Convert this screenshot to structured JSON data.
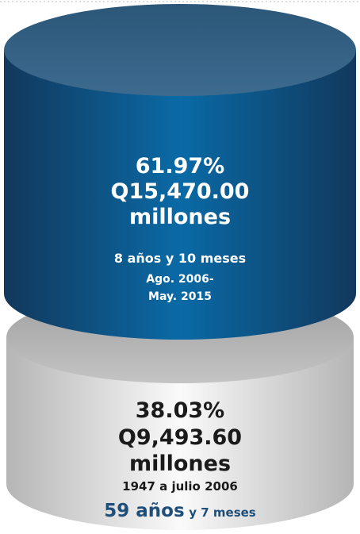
{
  "segments": [
    {
      "percent": "61.97%",
      "amount": "Q15,470.00",
      "unit": "millones",
      "duration": "8 años y 10 meses",
      "period": [
        "Ago. 2006-",
        "May. 2015"
      ]
    },
    {
      "percent": "38.03%",
      "amount": "Q9,493.60",
      "unit": "millones",
      "period": "1947 a julio 2006",
      "duration_main": "59 años",
      "duration_rest": "y 7 meses"
    }
  ]
}
